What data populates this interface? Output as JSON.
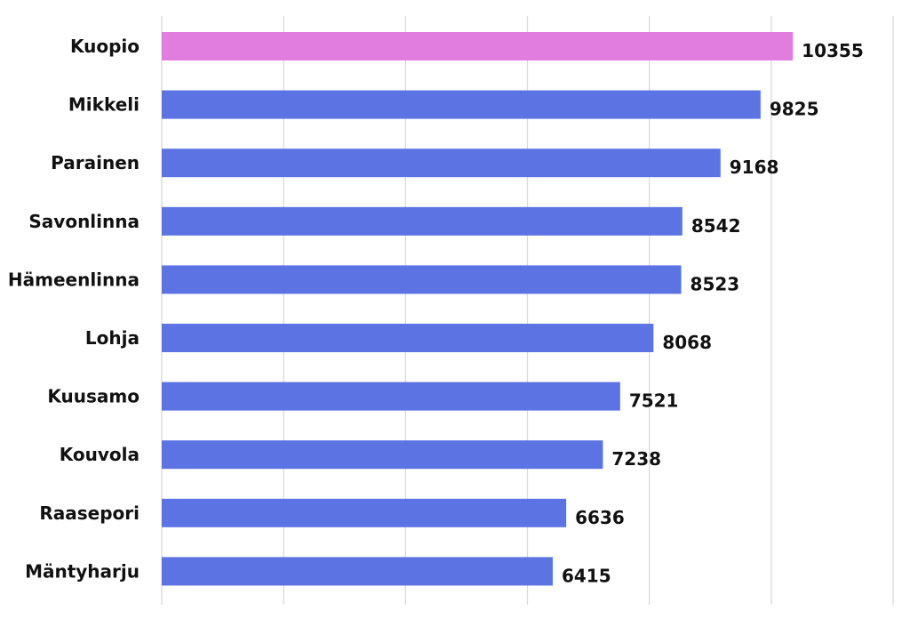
{
  "chart_data": {
    "type": "bar",
    "orientation": "horizontal",
    "categories": [
      "Kuopio",
      "Mikkeli",
      "Parainen",
      "Savonlinna",
      "Hämeenlinna",
      "Lohja",
      "Kuusamo",
      "Kouvola",
      "Raasepori",
      "Mäntyharju"
    ],
    "values": [
      10355,
      9825,
      9168,
      8542,
      8523,
      8068,
      7521,
      7238,
      6636,
      6415
    ],
    "highlight_index": 0,
    "colors": {
      "bar": "#5b73e3",
      "highlight": "#e07ddf"
    },
    "xlim": [
      0,
      12000
    ],
    "grid": true,
    "title": "",
    "xlabel": "",
    "ylabel": ""
  }
}
